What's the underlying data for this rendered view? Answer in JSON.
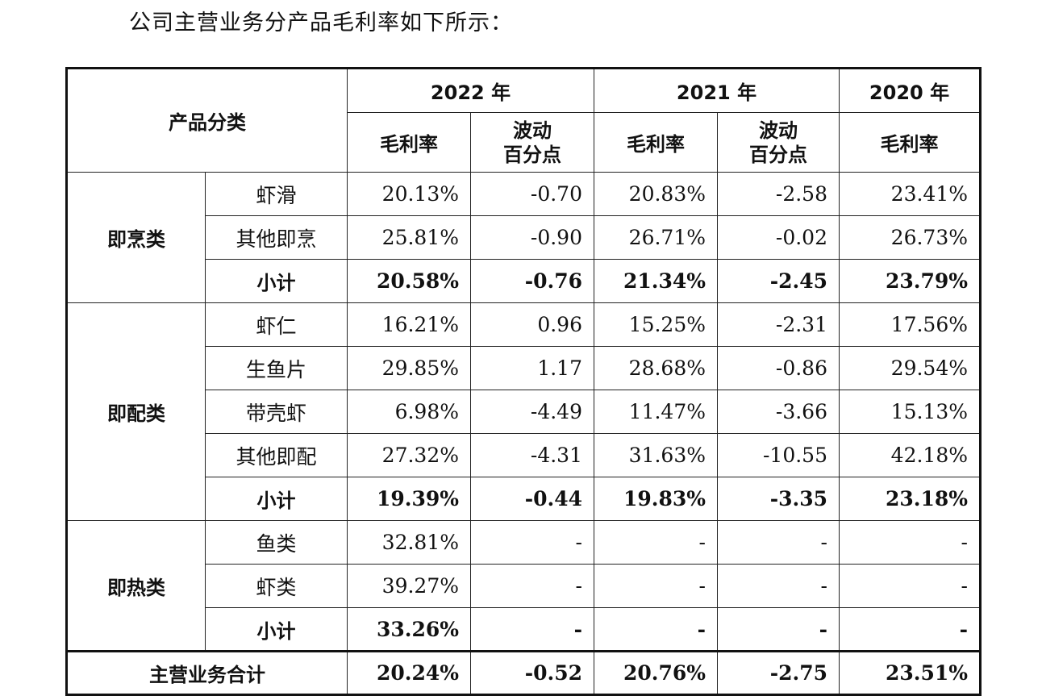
{
  "intro": "公司主营业务分产品毛利率如下所示：",
  "header": {
    "category": "产品分类",
    "years": [
      "2022 年",
      "2021 年",
      "2020 年"
    ],
    "gross_margin": "毛利率",
    "change_line1": "波动",
    "change_line2": "百分点"
  },
  "groups": [
    {
      "name": "即烹类",
      "rows": [
        {
          "label": "虾滑",
          "v": [
            "20.13%",
            "-0.70",
            "20.83%",
            "-2.58",
            "23.41%"
          ]
        },
        {
          "label": "其他即烹",
          "v": [
            "25.81%",
            "-0.90",
            "26.71%",
            "-0.02",
            "26.73%"
          ]
        },
        {
          "label": "小计",
          "v": [
            "20.58%",
            "-0.76",
            "21.34%",
            "-2.45",
            "23.79%"
          ]
        }
      ]
    },
    {
      "name": "即配类",
      "rows": [
        {
          "label": "虾仁",
          "v": [
            "16.21%",
            "0.96",
            "15.25%",
            "-2.31",
            "17.56%"
          ]
        },
        {
          "label": "生鱼片",
          "v": [
            "29.85%",
            "1.17",
            "28.68%",
            "-0.86",
            "29.54%"
          ]
        },
        {
          "label": "带壳虾",
          "v": [
            "6.98%",
            "-4.49",
            "11.47%",
            "-3.66",
            "15.13%"
          ]
        },
        {
          "label": "其他即配",
          "v": [
            "27.32%",
            "-4.31",
            "31.63%",
            "-10.55",
            "42.18%"
          ]
        },
        {
          "label": "小计",
          "v": [
            "19.39%",
            "-0.44",
            "19.83%",
            "-3.35",
            "23.18%"
          ]
        }
      ]
    },
    {
      "name": "即热类",
      "rows": [
        {
          "label": "鱼类",
          "v": [
            "32.81%",
            "-",
            "-",
            "-",
            "-"
          ]
        },
        {
          "label": "虾类",
          "v": [
            "39.27%",
            "-",
            "-",
            "-",
            "-"
          ]
        },
        {
          "label": "小计",
          "v": [
            "33.26%",
            "-",
            "-",
            "-",
            "-"
          ]
        }
      ]
    }
  ],
  "total": {
    "label": "主营业务合计",
    "v": [
      "20.24%",
      "-0.52",
      "20.76%",
      "-2.75",
      "23.51%"
    ]
  }
}
